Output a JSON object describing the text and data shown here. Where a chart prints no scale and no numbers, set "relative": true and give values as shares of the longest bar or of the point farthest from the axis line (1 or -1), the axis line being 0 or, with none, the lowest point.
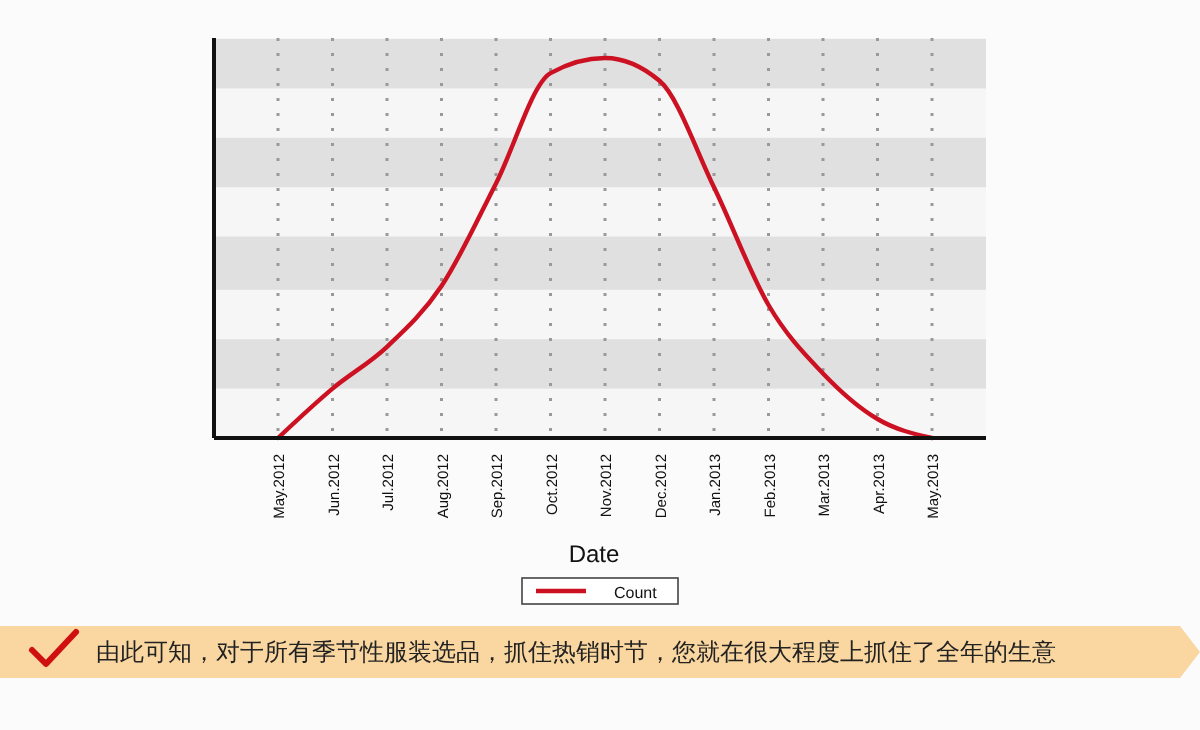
{
  "chart_data": {
    "type": "line",
    "relative": true,
    "xlabel": "Date",
    "categories": [
      "May.2012",
      "Jun.2012",
      "Jul.2012",
      "Aug.2012",
      "Sep.2012",
      "Oct.2012",
      "Nov.2012",
      "Dec.2012",
      "Jan.2013",
      "Feb.2013",
      "Mar.2013",
      "Apr.2013",
      "May.2013"
    ],
    "series": [
      {
        "name": "Count",
        "color": "#cc1122",
        "values": [
          0,
          0.13,
          0.24,
          0.4,
          0.67,
          0.96,
          1,
          0.94,
          0.66,
          0.35,
          0.17,
          0.05,
          0
        ]
      }
    ],
    "bands": [
      {
        "axis": "y",
        "from": 0.13,
        "to": 0.26,
        "color": "#e0e0e0"
      },
      {
        "axis": "y",
        "from": 0.39,
        "to": 0.53,
        "color": "#e0e0e0"
      },
      {
        "axis": "y",
        "from": 0.66,
        "to": 0.79,
        "color": "#e0e0e0"
      },
      {
        "axis": "y",
        "from": 0.92,
        "to": 1.05,
        "color": "#e0e0e0"
      }
    ],
    "grid": "x",
    "legend": "bottom",
    "marker": "none",
    "line_style": "solid",
    "annotations": [
      "由此可知，对于所有季节性服装选品，抓住热销时节，您就在很大程度上抓住了全年的生意"
    ]
  }
}
